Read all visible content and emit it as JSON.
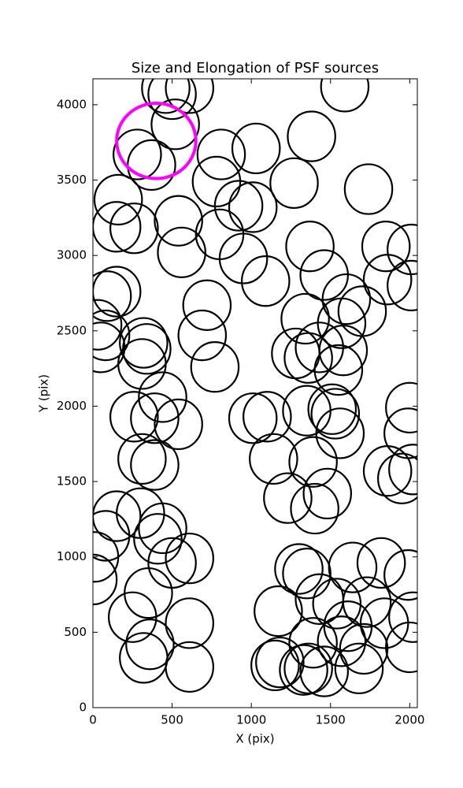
{
  "chart_data": {
    "type": "ellipse",
    "title": "Size and Elongation of PSF sources",
    "xlabel": "X (pix)",
    "ylabel": "Y (pix)",
    "xlim": [
      0,
      2048
    ],
    "ylim": [
      0,
      4172
    ],
    "xticks": [
      0,
      500,
      1000,
      1500,
      2000
    ],
    "yticks": [
      0,
      500,
      1000,
      1500,
      2000,
      2500,
      3000,
      3500,
      4000
    ],
    "series": [
      {
        "color": "#000000",
        "x": [
          460,
          610,
          500,
          520,
          280,
          370,
          810,
          1030,
          1380,
          1740,
          1590,
          780,
          1270,
          160,
          150,
          260,
          540,
          800,
          560,
          920,
          1010,
          950,
          1090,
          1370,
          1850,
          2010,
          1460,
          1600,
          1860,
          2010,
          90,
          150,
          30,
          80,
          50,
          720,
          690,
          770,
          320,
          340,
          310,
          1340,
          1430,
          1570,
          1700,
          1580,
          1280,
          1360,
          1550,
          440,
          540,
          390,
          260,
          1010,
          1100,
          1350,
          1510,
          1530,
          1560,
          1140,
          1230,
          1390,
          1400,
          1480,
          310,
          390,
          1860,
          1950,
          2000,
          1990,
          2020,
          150,
          80,
          300,
          440,
          410,
          10,
          0,
          610,
          500,
          350,
          250,
          610,
          320,
          360,
          610,
          1170,
          1300,
          1350,
          1430,
          1540,
          1640,
          1820,
          1990,
          1730,
          1840,
          1610,
          1570,
          1390,
          1360,
          1460,
          1680,
          1710,
          1150,
          1180,
          2000,
          2020,
          1330
        ],
        "y": [
          4110,
          4110,
          4070,
          3870,
          3670,
          3600,
          3670,
          3710,
          3790,
          3440,
          4120,
          3490,
          3480,
          3370,
          3190,
          3180,
          3230,
          3140,
          3020,
          3330,
          3320,
          2980,
          2830,
          3060,
          3060,
          3040,
          2870,
          2710,
          2840,
          2800,
          2730,
          2760,
          2540,
          2470,
          2390,
          2670,
          2470,
          2260,
          2420,
          2380,
          2280,
          2580,
          2390,
          2550,
          2630,
          2370,
          2350,
          2320,
          2240,
          2060,
          1880,
          1920,
          1930,
          1920,
          1930,
          1970,
          1980,
          1950,
          1820,
          1650,
          1390,
          1630,
          1320,
          1420,
          1650,
          1610,
          1570,
          1520,
          1990,
          1820,
          1580,
          1270,
          1140,
          1290,
          1190,
          1120,
          1000,
          850,
          990,
          960,
          760,
          600,
          560,
          330,
          420,
          270,
          640,
          920,
          890,
          720,
          690,
          930,
          960,
          880,
          700,
          560,
          540,
          440,
          430,
          260,
          240,
          260,
          390,
          280,
          300,
          400,
          600,
          250
        ],
        "width": 300,
        "height": 330,
        "linewidth": 2.2
      },
      {
        "color": "#ff00ff",
        "x": [
          400
        ],
        "y": [
          3760
        ],
        "width": 500,
        "height": 500,
        "linewidth": 4
      }
    ]
  }
}
